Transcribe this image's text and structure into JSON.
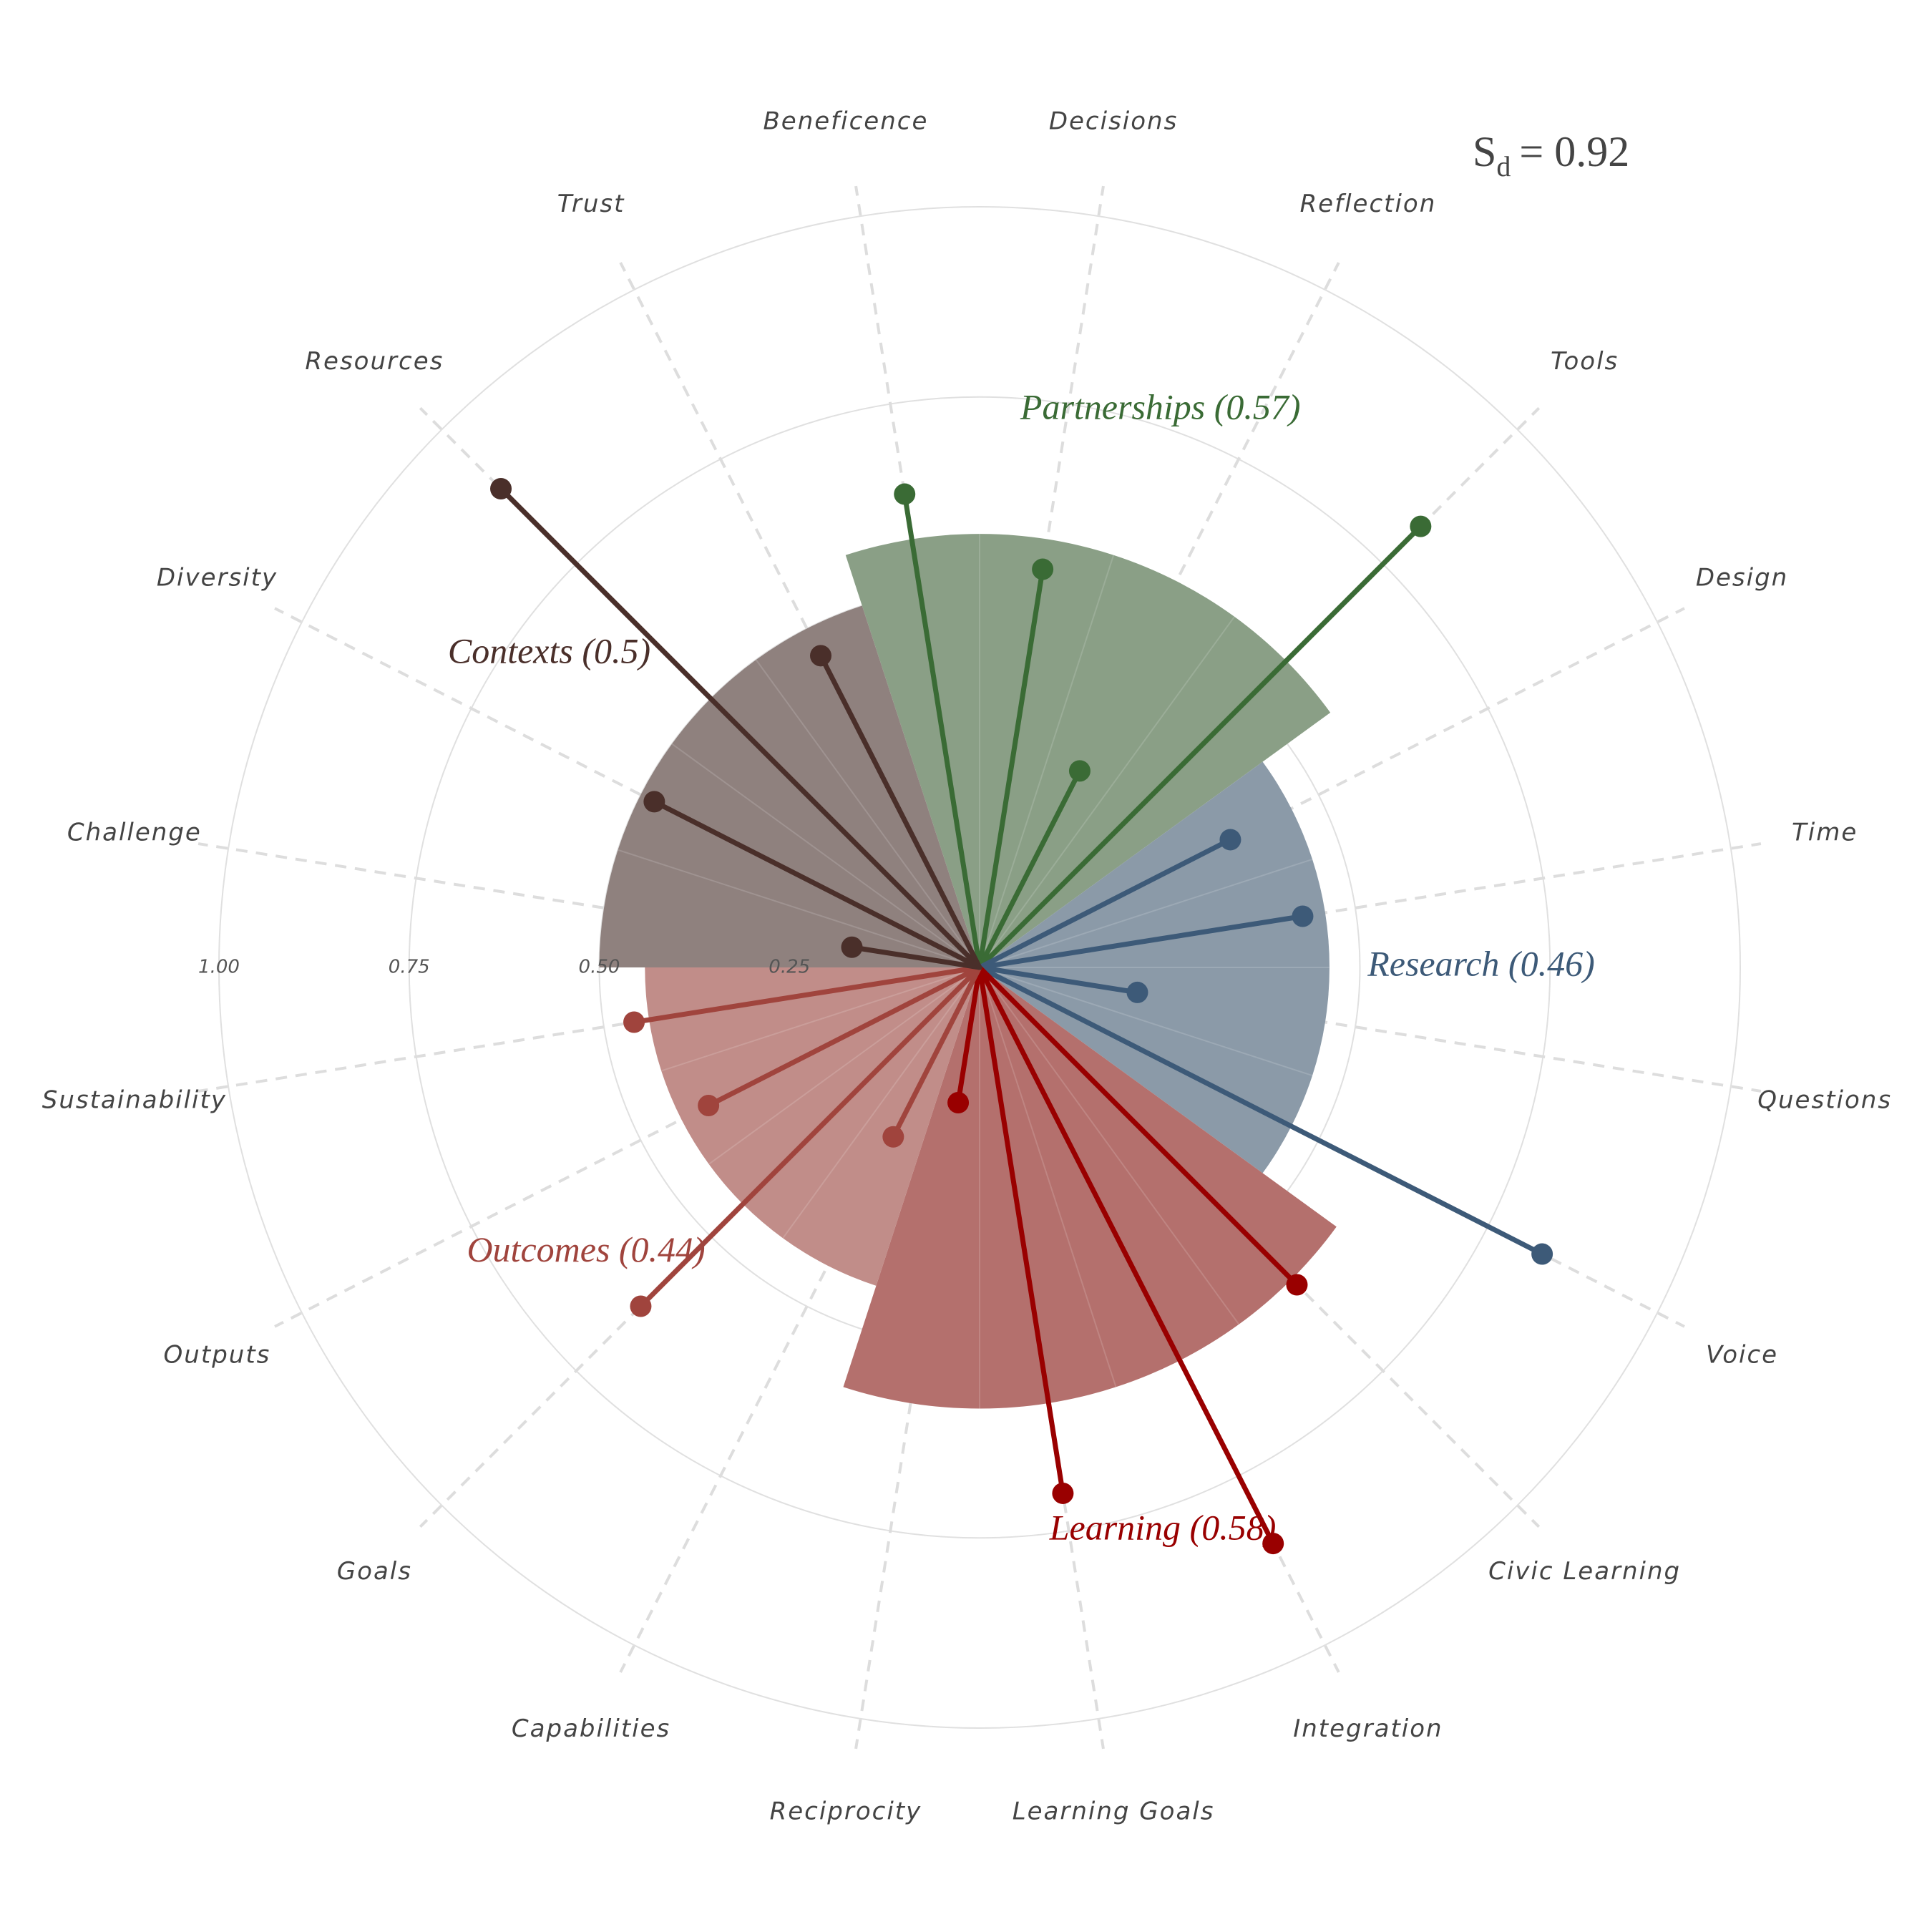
{
  "chart_data": {
    "type": "polar-lollipop",
    "annotation": {
      "symbol": "S",
      "subscript": "d",
      "text": "= 0.92"
    },
    "rticks": [
      {
        "value": 0.25,
        "label": "0.25"
      },
      {
        "value": 0.5,
        "label": "0.50"
      },
      {
        "value": 0.75,
        "label": "0.75"
      },
      {
        "value": 1,
        "label": "1.00"
      }
    ],
    "series": [
      {
        "name": "Partnerships (0.57)",
        "value": 0.57,
        "color": "#3a6b35",
        "fill": "#8a9f86",
        "categories": [
          "Beneficence",
          "Decisions",
          "Reflection",
          "Tools"
        ],
        "values": [
          0.63,
          0.53,
          0.29,
          0.82
        ]
      },
      {
        "name": "Research (0.46)",
        "value": 0.46,
        "color": "#3d5a78",
        "fill": "#8b9aa8",
        "categories": [
          "Design",
          "Time",
          "Questions",
          "Voice"
        ],
        "values": [
          0.37,
          0.43,
          0.21,
          0.83
        ]
      },
      {
        "name": "Learning (0.58)",
        "value": 0.58,
        "color": "#990000",
        "fill": "#b4706d",
        "categories": [
          "Civic Learning",
          "Integration",
          "Learning Goals",
          "Reciprocity"
        ],
        "values": [
          0.59,
          0.85,
          0.7,
          0.18
        ]
      },
      {
        "name": "Outcomes (0.44)",
        "value": 0.44,
        "color": "#a0443d",
        "fill": "#c18d89",
        "categories": [
          "Capabilities",
          "Goals",
          "Outputs",
          "Sustainability"
        ],
        "values": [
          0.25,
          0.63,
          0.4,
          0.46
        ]
      },
      {
        "name": "Contexts (0.5)",
        "value": 0.5,
        "color": "#4a2f2a",
        "fill": "#8f817e",
        "categories": [
          "Challenge",
          "Diversity",
          "Resources",
          "Trust"
        ],
        "values": [
          0.17,
          0.48,
          0.89,
          0.46
        ]
      }
    ]
  }
}
